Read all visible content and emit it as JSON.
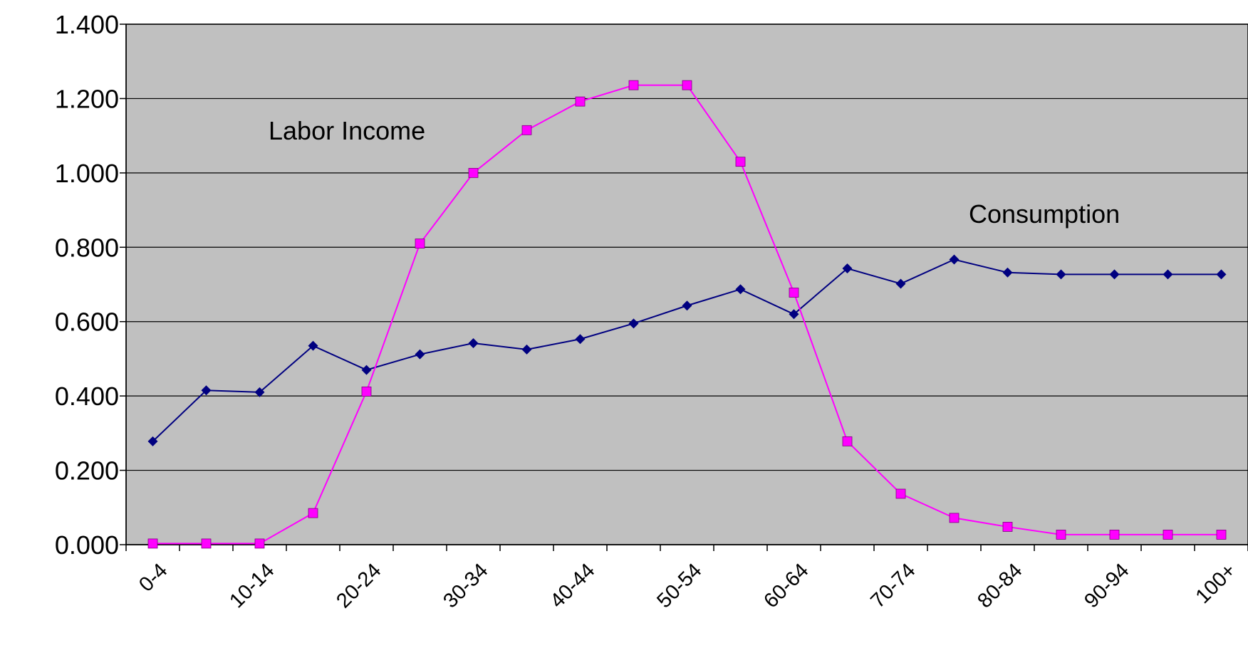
{
  "chart_data": {
    "type": "line",
    "categories": [
      "0-4",
      null,
      "10-14",
      null,
      "20-24",
      null,
      "30-34",
      null,
      "40-44",
      null,
      "50-54",
      null,
      "60-64",
      null,
      "70-74",
      null,
      "80-84",
      null,
      "90-94",
      null,
      "100+"
    ],
    "series": [
      {
        "name": "Consumption",
        "color": "#000080",
        "marker": "diamond",
        "values": [
          0.278,
          0.415,
          0.41,
          0.535,
          0.47,
          0.512,
          0.542,
          0.525,
          0.553,
          0.595,
          0.643,
          0.687,
          0.62,
          0.743,
          0.702,
          0.767,
          0.732,
          0.727,
          0.727,
          0.727,
          0.727
        ]
      },
      {
        "name": "Labor Income",
        "color": "#ff00ff",
        "marker": "square",
        "values": [
          0.003,
          0.003,
          0.003,
          0.085,
          0.412,
          0.81,
          1.0,
          1.115,
          1.192,
          1.236,
          1.236,
          1.03,
          0.678,
          0.278,
          0.137,
          0.072,
          0.048,
          0.027,
          0.027,
          0.027,
          0.027
        ]
      }
    ],
    "ylim": [
      0,
      1.4
    ],
    "yticks": [
      {
        "value": 0,
        "label": "0.000"
      },
      {
        "value": 0.2,
        "label": "0.200"
      },
      {
        "value": 0.4,
        "label": "0.400"
      },
      {
        "value": 0.6,
        "label": "0.600"
      },
      {
        "value": 0.8,
        "label": "0.800"
      },
      {
        "value": 1.0,
        "label": "1.000"
      },
      {
        "value": 1.2,
        "label": "1.200"
      },
      {
        "value": 1.4,
        "label": "1.400"
      }
    ],
    "grid": true,
    "plot_background": "#c0c0c0"
  }
}
